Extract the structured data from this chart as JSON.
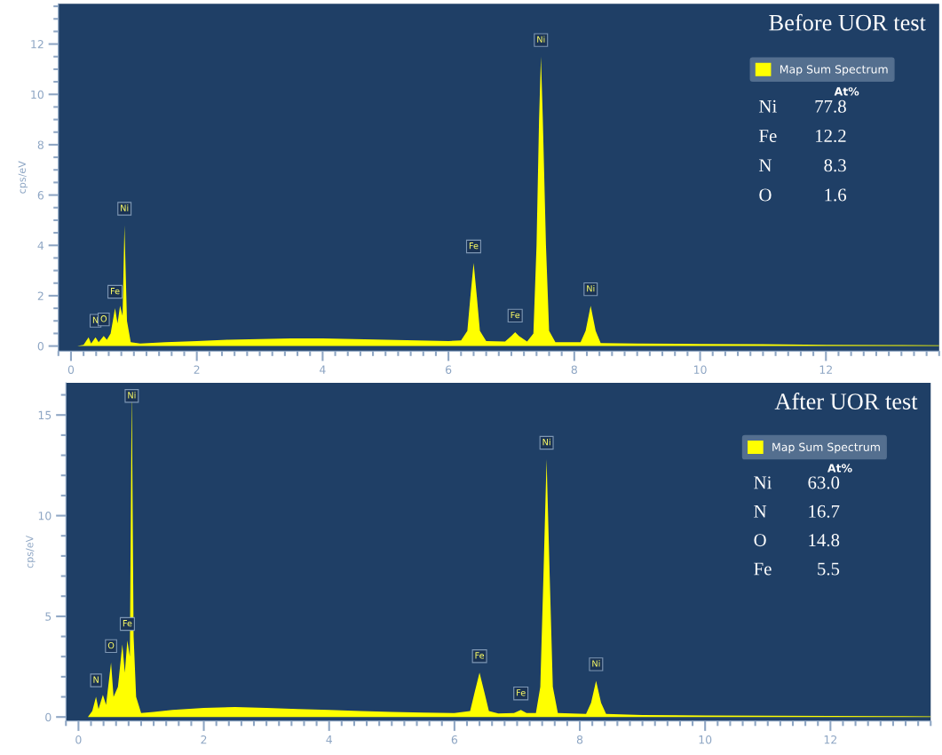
{
  "chart_data": [
    {
      "type": "area",
      "title": "Before UOR test",
      "ylabel": "cps/eV",
      "xlim": [
        -0.2,
        13.8
      ],
      "ylim": [
        -0.2,
        13.6
      ],
      "xticks": [
        0,
        2,
        4,
        6,
        8,
        10,
        12
      ],
      "yticks": [
        0,
        2,
        4,
        6,
        8,
        10,
        12
      ],
      "legend": "top right",
      "grid": false,
      "x": [
        0.1,
        0.2,
        0.28,
        0.32,
        0.39,
        0.44,
        0.52,
        0.57,
        0.63,
        0.7,
        0.74,
        0.78,
        0.82,
        0.85,
        0.89,
        0.95,
        1.1,
        1.5,
        2.0,
        2.5,
        3.0,
        3.5,
        4.0,
        4.5,
        5.0,
        5.5,
        6.0,
        6.2,
        6.3,
        6.35,
        6.4,
        6.45,
        6.5,
        6.6,
        6.9,
        7.0,
        7.06,
        7.12,
        7.25,
        7.35,
        7.4,
        7.44,
        7.47,
        7.5,
        7.55,
        7.6,
        7.7,
        8.1,
        8.18,
        8.26,
        8.34,
        8.42,
        9.0,
        10.0,
        11.0,
        12.0,
        13.0,
        13.8
      ],
      "series": [
        {
          "name": "Map Sum Spectrum",
          "color": "#ffff00",
          "values": [
            0,
            0.05,
            0.35,
            0.1,
            0.35,
            0.15,
            0.4,
            0.25,
            0.5,
            1.5,
            0.9,
            1.6,
            1.2,
            4.8,
            1.0,
            0.15,
            0.1,
            0.15,
            0.2,
            0.25,
            0.28,
            0.3,
            0.3,
            0.28,
            0.25,
            0.22,
            0.2,
            0.22,
            0.6,
            2.0,
            3.3,
            2.0,
            0.6,
            0.2,
            0.18,
            0.4,
            0.55,
            0.4,
            0.18,
            0.5,
            4.0,
            9.0,
            11.5,
            9.0,
            4.0,
            0.6,
            0.15,
            0.15,
            0.6,
            1.6,
            0.6,
            0.12,
            0.1,
            0.08,
            0.07,
            0.05,
            0.04,
            0.03
          ]
        }
      ],
      "annotations": [
        {
          "text": "N",
          "x": 0.39,
          "y": 0.35
        },
        {
          "text": "O",
          "x": 0.52,
          "y": 0.4
        },
        {
          "text": "Fe",
          "x": 0.7,
          "y": 1.5
        },
        {
          "text": "Ni",
          "x": 0.85,
          "y": 4.8
        },
        {
          "text": "Fe",
          "x": 6.4,
          "y": 3.3
        },
        {
          "text": "Fe",
          "x": 7.06,
          "y": 0.55
        },
        {
          "text": "Ni",
          "x": 7.47,
          "y": 11.5
        },
        {
          "text": "Ni",
          "x": 8.26,
          "y": 1.6
        },
        "At%",
        "Ni 77.8",
        "Fe 12.2",
        "N 8.3",
        "O 1.6"
      ]
    },
    {
      "type": "area",
      "title": "After UOR test",
      "ylabel": "cps/eV",
      "xlim": [
        -0.2,
        13.6
      ],
      "ylim": [
        -0.2,
        16.6
      ],
      "xticks": [
        0,
        2,
        4,
        6,
        8,
        10,
        12
      ],
      "yticks": [
        0,
        5,
        10,
        15
      ],
      "legend": "top right",
      "grid": false,
      "x": [
        0.15,
        0.22,
        0.28,
        0.32,
        0.39,
        0.44,
        0.52,
        0.56,
        0.63,
        0.7,
        0.74,
        0.78,
        0.82,
        0.85,
        0.88,
        0.92,
        1.0,
        1.2,
        1.5,
        2.0,
        2.5,
        3.0,
        3.5,
        4.0,
        4.5,
        5.0,
        5.5,
        6.0,
        6.25,
        6.32,
        6.4,
        6.48,
        6.55,
        6.7,
        6.95,
        7.06,
        7.15,
        7.3,
        7.37,
        7.42,
        7.47,
        7.52,
        7.57,
        7.65,
        8.1,
        8.18,
        8.26,
        8.34,
        8.42,
        9.0,
        10.0,
        11.0,
        12.0,
        13.0,
        13.6
      ],
      "series": [
        {
          "name": "Map Sum Spectrum",
          "color": "#ffff00",
          "values": [
            0,
            0.3,
            1.0,
            0.4,
            1.1,
            0.6,
            2.7,
            1.0,
            1.5,
            3.6,
            2.2,
            3.8,
            3.0,
            16.4,
            4.0,
            1.0,
            0.2,
            0.25,
            0.35,
            0.45,
            0.5,
            0.45,
            0.4,
            0.35,
            0.3,
            0.25,
            0.22,
            0.2,
            0.3,
            1.2,
            2.2,
            1.2,
            0.3,
            0.18,
            0.2,
            0.35,
            0.2,
            0.2,
            1.5,
            7.0,
            12.8,
            7.0,
            1.5,
            0.2,
            0.15,
            0.7,
            1.8,
            0.7,
            0.15,
            0.1,
            0.08,
            0.06,
            0.05,
            0.04,
            0.03
          ]
        }
      ],
      "annotations": [
        {
          "text": "N",
          "x": 0.28,
          "y": 1.0
        },
        {
          "text": "O",
          "x": 0.52,
          "y": 2.7
        },
        {
          "text": "Fe",
          "x": 0.78,
          "y": 3.8
        },
        {
          "text": "Ni",
          "x": 0.85,
          "y": 16.4
        },
        {
          "text": "Fe",
          "x": 6.4,
          "y": 2.2
        },
        {
          "text": "Fe",
          "x": 7.06,
          "y": 0.35
        },
        {
          "text": "Ni",
          "x": 7.47,
          "y": 12.8
        },
        {
          "text": "Ni",
          "x": 8.26,
          "y": 1.8
        },
        "At%",
        "Ni 63.0",
        "N 16.7",
        "O 14.8",
        "Fe 5.5"
      ]
    }
  ]
}
